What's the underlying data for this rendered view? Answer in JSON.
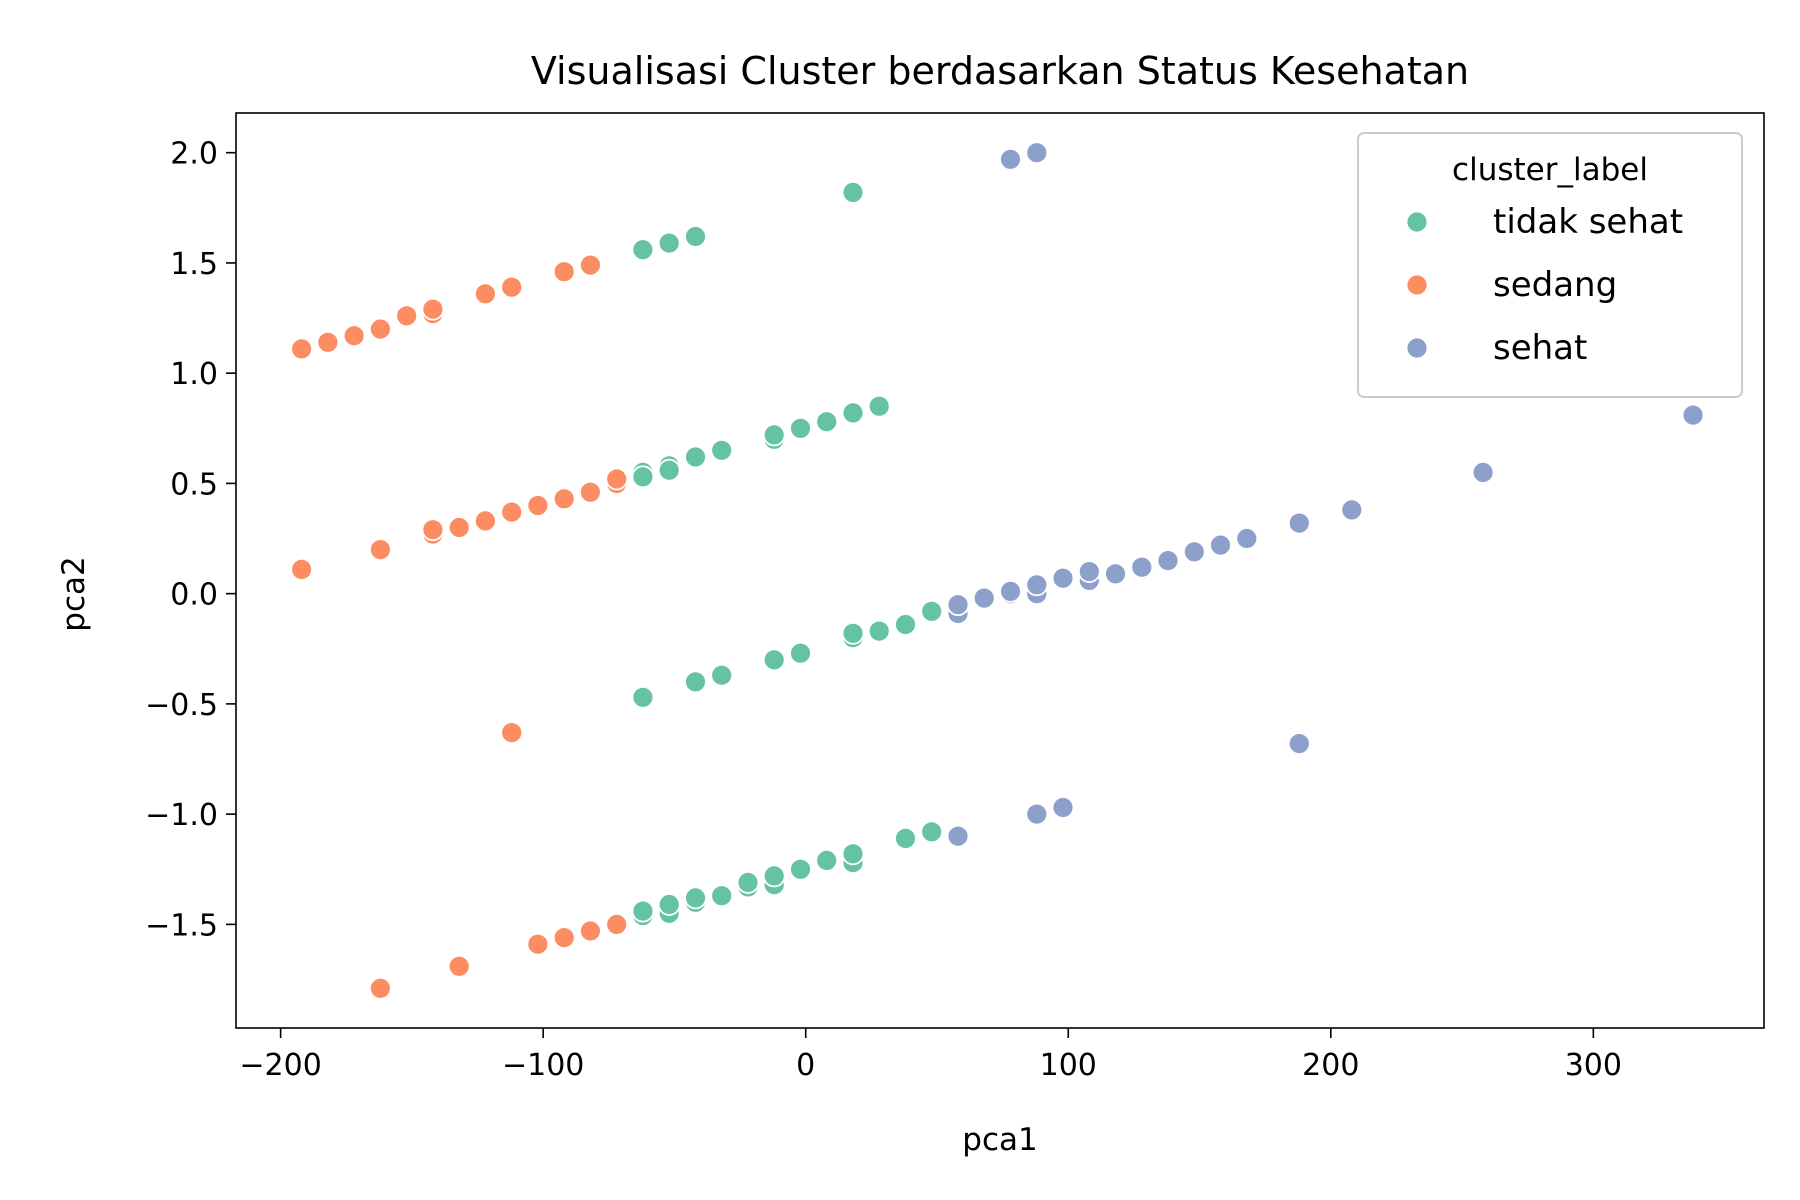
{
  "chart_data": {
    "type": "scatter",
    "title": "Visualisasi Cluster berdasarkan Status Kesehatan",
    "xlabel": "pca1",
    "ylabel": "pca2",
    "xlim": [
      -217,
      365
    ],
    "ylim": [
      -1.97,
      2.18
    ],
    "xticks": [
      -200,
      -100,
      0,
      100,
      200,
      300
    ],
    "xtick_labels": [
      "−200",
      "−100",
      "0",
      "100",
      "200",
      "300"
    ],
    "yticks": [
      -1.5,
      -1.0,
      -0.5,
      0.0,
      0.5,
      1.0,
      1.5,
      2.0
    ],
    "ytick_labels": [
      "−1.5",
      "−1.0",
      "−0.5",
      "0.0",
      "0.5",
      "1.0",
      "1.5",
      "2.0"
    ],
    "grid": false,
    "legend": {
      "title": "cluster_label",
      "position": "top-right"
    },
    "series": [
      {
        "name": "tidak sehat",
        "color": "#66c2a5",
        "points": [
          [
            -62,
            1.56
          ],
          [
            -52,
            1.59
          ],
          [
            -42,
            1.62
          ],
          [
            18,
            1.82
          ],
          [
            -62,
            0.55
          ],
          [
            -52,
            0.58
          ],
          [
            -42,
            0.62
          ],
          [
            -32,
            0.65
          ],
          [
            -12,
            0.7
          ],
          [
            -12,
            0.72
          ],
          [
            -2,
            0.75
          ],
          [
            8,
            0.78
          ],
          [
            18,
            0.82
          ],
          [
            28,
            0.85
          ],
          [
            -62,
            0.53
          ],
          [
            -52,
            0.56
          ],
          [
            -62,
            -0.47
          ],
          [
            -42,
            -0.4
          ],
          [
            -32,
            -0.37
          ],
          [
            -12,
            -0.3
          ],
          [
            -2,
            -0.27
          ],
          [
            18,
            -0.2
          ],
          [
            18,
            -0.18
          ],
          [
            28,
            -0.17
          ],
          [
            38,
            -0.14
          ],
          [
            48,
            -0.08
          ],
          [
            -62,
            -1.46
          ],
          [
            -62,
            -1.44
          ],
          [
            -52,
            -1.45
          ],
          [
            -52,
            -1.41
          ],
          [
            -42,
            -1.4
          ],
          [
            -42,
            -1.38
          ],
          [
            -32,
            -1.37
          ],
          [
            -22,
            -1.33
          ],
          [
            -22,
            -1.31
          ],
          [
            -12,
            -1.32
          ],
          [
            -12,
            -1.28
          ],
          [
            -2,
            -1.25
          ],
          [
            8,
            -1.21
          ],
          [
            18,
            -1.22
          ],
          [
            18,
            -1.18
          ],
          [
            38,
            -1.11
          ],
          [
            48,
            -1.08
          ]
        ]
      },
      {
        "name": "sedang",
        "color": "#fc8d62",
        "points": [
          [
            -192,
            1.11
          ],
          [
            -182,
            1.14
          ],
          [
            -172,
            1.17
          ],
          [
            -162,
            1.2
          ],
          [
            -152,
            1.26
          ],
          [
            -142,
            1.27
          ],
          [
            -142,
            1.29
          ],
          [
            -122,
            1.36
          ],
          [
            -112,
            1.39
          ],
          [
            -92,
            1.46
          ],
          [
            -82,
            1.49
          ],
          [
            -192,
            0.11
          ],
          [
            -162,
            0.2
          ],
          [
            -142,
            0.27
          ],
          [
            -142,
            0.29
          ],
          [
            -132,
            0.3
          ],
          [
            -122,
            0.33
          ],
          [
            -112,
            0.37
          ],
          [
            -102,
            0.4
          ],
          [
            -92,
            0.43
          ],
          [
            -82,
            0.46
          ],
          [
            -72,
            0.5
          ],
          [
            -72,
            0.52
          ],
          [
            -112,
            -0.63
          ],
          [
            -162,
            -1.79
          ],
          [
            -132,
            -1.69
          ],
          [
            -102,
            -1.59
          ],
          [
            -92,
            -1.56
          ],
          [
            -82,
            -1.53
          ],
          [
            -72,
            -1.5
          ]
        ]
      },
      {
        "name": "sehat",
        "color": "#8da0cb",
        "points": [
          [
            78,
            1.97
          ],
          [
            88,
            2.0
          ],
          [
            58,
            -0.09
          ],
          [
            58,
            -0.05
          ],
          [
            68,
            -0.02
          ],
          [
            78,
            0.0
          ],
          [
            78,
            0.01
          ],
          [
            88,
            0.0
          ],
          [
            88,
            0.04
          ],
          [
            98,
            0.07
          ],
          [
            108,
            0.06
          ],
          [
            108,
            0.1
          ],
          [
            118,
            0.09
          ],
          [
            128,
            0.12
          ],
          [
            138,
            0.15
          ],
          [
            148,
            0.19
          ],
          [
            158,
            0.22
          ],
          [
            168,
            0.25
          ],
          [
            188,
            0.32
          ],
          [
            208,
            0.38
          ],
          [
            258,
            0.55
          ],
          [
            338,
            0.81
          ],
          [
            188,
            -0.68
          ],
          [
            98,
            -0.97
          ],
          [
            88,
            -1.0
          ],
          [
            58,
            -1.1
          ]
        ]
      }
    ]
  }
}
